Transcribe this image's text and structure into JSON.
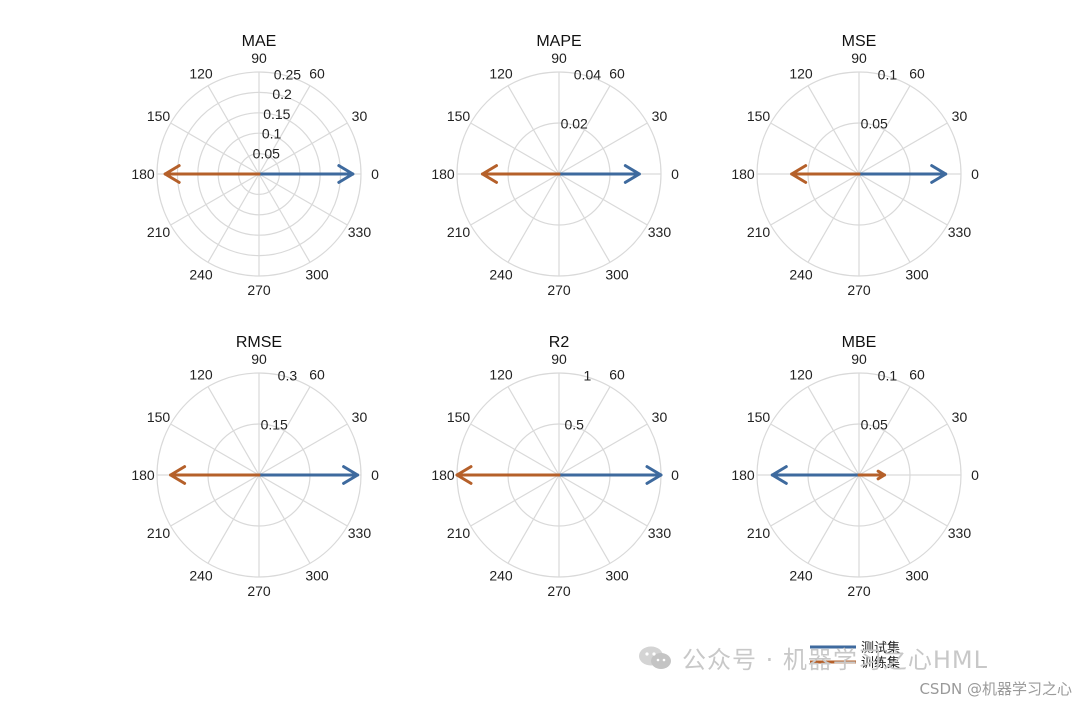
{
  "chart_data": [
    {
      "type": "polar",
      "title": "MAE",
      "rlim": [
        0,
        0.25
      ],
      "rticks": [
        "0.05",
        "0.1",
        "0.15",
        "0.2",
        "0.25"
      ],
      "series": [
        {
          "name": "测试集",
          "angle": 0,
          "value": 0.23
        },
        {
          "name": "训练集",
          "angle": 180,
          "value": 0.23
        }
      ]
    },
    {
      "type": "polar",
      "title": "MAPE",
      "rlim": [
        0,
        0.04
      ],
      "rticks": [
        "0.02",
        "0.04"
      ],
      "series": [
        {
          "name": "测试集",
          "angle": 0,
          "value": 0.0315
        },
        {
          "name": "训练集",
          "angle": 180,
          "value": 0.03
        }
      ]
    },
    {
      "type": "polar",
      "title": "MSE",
      "rlim": [
        0,
        0.1
      ],
      "rticks": [
        "0.05",
        "0.1"
      ],
      "series": [
        {
          "name": "测试集",
          "angle": 0,
          "value": 0.085
        },
        {
          "name": "训练集",
          "angle": 180,
          "value": 0.066
        }
      ]
    },
    {
      "type": "polar",
      "title": "RMSE",
      "rlim": [
        0,
        0.3
      ],
      "rticks": [
        "0.15",
        "0.3"
      ],
      "series": [
        {
          "name": "测试集",
          "angle": 0,
          "value": 0.29
        },
        {
          "name": "训练集",
          "angle": 180,
          "value": 0.26
        }
      ]
    },
    {
      "type": "polar",
      "title": "R2",
      "rlim": [
        0,
        1
      ],
      "rticks": [
        "0.5",
        "1"
      ],
      "series": [
        {
          "name": "测试集",
          "angle": 0,
          "value": 1.0
        },
        {
          "name": "训练集",
          "angle": 180,
          "value": 1.0
        }
      ]
    },
    {
      "type": "polar",
      "title": "MBE",
      "rlim": [
        0,
        0.1
      ],
      "rticks": [
        "0.05",
        "0.1"
      ],
      "series": [
        {
          "name": "测试集",
          "angle": 180,
          "value": 0.085
        },
        {
          "name": "训练集",
          "angle": 0,
          "value": 0.025
        }
      ]
    }
  ],
  "angle_labels": [
    "0",
    "30",
    "60",
    "90",
    "120",
    "150",
    "180",
    "210",
    "240",
    "270",
    "300",
    "330"
  ],
  "legend": [
    {
      "name": "测试集",
      "color": "#3e6a9e"
    },
    {
      "name": "训练集",
      "color": "#b5602a"
    }
  ],
  "colors": {
    "test": "#3e6a9e",
    "train": "#b5602a",
    "grid": "#d9d9d9"
  },
  "watermark": {
    "main": "公众号 · 机器学习之心HML",
    "sub": "CSDN @机器学习之心",
    "icon": "wechat-icon"
  }
}
